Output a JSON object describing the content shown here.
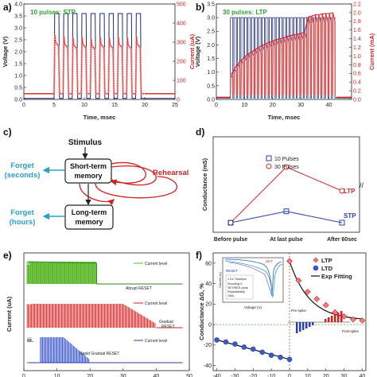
{
  "colors": {
    "voltage": "#1b2a7a",
    "current": "#d21f1f",
    "current_light": "#f3a0a0",
    "green": "#5cb82a",
    "red_line": "#cf2a2a",
    "blue_line": "#2a3fb0",
    "flow": "#2aa0c8",
    "rehearsal": "#cc2222",
    "title_green": "#2ea32e"
  },
  "panel_a": {
    "label": "a)",
    "title": "10 pulses: STP",
    "ylabel_left": "Voltage (V)",
    "ylabel_right": "Current (uA)",
    "xlabel": "Time, msec",
    "x_ticks": [
      "0",
      "5",
      "10",
      "15",
      "20",
      "25"
    ],
    "y_left_ticks": [
      "0.0",
      "0.5",
      "1.0",
      "1.5",
      "2.0",
      "2.5",
      "3.0",
      "3.5",
      "4.0"
    ],
    "y_right_ticks": [
      "0",
      "100",
      "200",
      "300",
      "400",
      "500"
    ]
  },
  "panel_b": {
    "label": "b)",
    "title": "30 pulses: LTP",
    "ylabel_left": "Voltage (V)",
    "ylabel_right": "Current (mA)",
    "xlabel": "Time, msec",
    "x_ticks": [
      "0",
      "10",
      "20",
      "30",
      "40"
    ],
    "y_left_ticks": [
      "0.0",
      "0.5",
      "1.0",
      "1.5",
      "2.0",
      "2.5",
      "3.0",
      "3.5"
    ],
    "y_right_ticks": [
      "0.0",
      "0.2",
      "0.4",
      "0.6",
      "0.8",
      "1.0",
      "1.2",
      "1.4",
      "1.6",
      "1.8",
      "2.0",
      "2.2"
    ]
  },
  "panel_c": {
    "label": "c)",
    "stimulus": "Stimulus",
    "short_term_1": "Short-term",
    "short_term_2": "memory",
    "long_term_1": "Long-term",
    "long_term_2": "memory",
    "forget_1a": "Forget",
    "forget_1b": "(seconds)",
    "forget_2a": "Forget",
    "forget_2b": "(hours)",
    "rehearsal": "Rehearsal"
  },
  "panel_d": {
    "label": "d)",
    "ylabel": "Conductance (mS)",
    "categories": [
      "Before pulse",
      "At last pulse",
      "After 60sec"
    ],
    "legend": [
      "10 Pulses",
      "30 Pulses"
    ],
    "tag_ltp": "LTP",
    "tag_stp": "STP"
  },
  "panel_e": {
    "label": "e)",
    "ylabel": "Current (uA)",
    "x_ticks": [
      "0",
      "10",
      "20",
      "30",
      "40",
      "50"
    ],
    "sub_i": "i.",
    "sub_ii": "ii.",
    "sub_iii": "iii.",
    "legend_i": "Current level",
    "legend_ii": "Current level",
    "legend_iii": "Current level",
    "note_i": "Abrupt RESET",
    "note_ii_1": "Gradual",
    "note_ii_2": "RESET",
    "note_iii": "Rapid Gradual RESET"
  },
  "panel_f": {
    "label": "f)",
    "ylabel": "Conductance ΔG, %",
    "x_ticks": [
      "-40",
      "-30",
      "-20",
      "-10",
      "0",
      "10",
      "20",
      "30",
      "40"
    ],
    "y_ticks": [
      "-40",
      "-20",
      "0",
      "20",
      "40",
      "60"
    ],
    "legend": [
      "LTP",
      "LTD",
      "Exp Fitting"
    ],
    "inset_set": "SET",
    "inset_reset": "RESET",
    "inset_xlabel": "Voltage (V)",
    "inset_ylabel": "Current (A)",
    "inset_box_title": "1 DC Sweeps:",
    "inset_box_l1": "Shooting V",
    "inset_box_l2": "SET/RES cycle",
    "inset_box_l3": "Repeatability",
    "inset_box_l4": "10dc",
    "pre_spike": "Pre-spike",
    "post_spike": "Post-spike"
  },
  "chart_data": [
    {
      "type": "line",
      "title": "10 pulses: STP",
      "xlabel": "Time, msec",
      "ylabel": "Voltage (V)",
      "y2label": "Current (uA)",
      "xlim": [
        0,
        25
      ],
      "ylim": [
        0,
        4.0
      ],
      "y2lim": [
        0,
        500
      ],
      "pulse_count": 10,
      "pulse_starts": [
        5.0,
        6.5,
        8.0,
        9.5,
        11.0,
        12.5,
        14.0,
        15.5,
        17.0,
        18.5
      ],
      "pulse_width": 0.9,
      "series": [
        {
          "name": "Voltage",
          "values": [
            3.6,
            3.6,
            3.6,
            3.6,
            3.6,
            3.6,
            3.6,
            3.6,
            3.6,
            3.6
          ]
        },
        {
          "name": "Current",
          "values": [
            340,
            330,
            325,
            330,
            320,
            330,
            325,
            330,
            325,
            330
          ]
        }
      ]
    },
    {
      "type": "line",
      "title": "30 pulses: LTP",
      "xlabel": "Time, msec",
      "ylabel": "Voltage (V)",
      "y2label": "Current (mA)",
      "xlim": [
        0,
        48
      ],
      "ylim": [
        0,
        3.5
      ],
      "y2lim": [
        0,
        2.2
      ],
      "pulse_count": 30,
      "pulse_start": 5,
      "pulse_period": 1.25,
      "series": [
        {
          "name": "Voltage",
          "values": [
            3.0,
            3.0,
            3.0,
            3.0,
            3.0,
            3.0,
            3.0,
            3.0,
            3.0,
            3.0,
            3.0,
            3.0,
            3.0,
            3.0,
            3.0,
            3.0,
            3.0,
            3.0,
            3.0,
            3.0,
            3.0,
            3.0,
            3.0,
            3.0,
            3.0,
            3.0,
            3.0,
            3.0,
            3.0,
            3.0
          ]
        },
        {
          "name": "Current",
          "values": [
            0.55,
            0.7,
            0.82,
            0.9,
            0.98,
            1.05,
            1.1,
            1.15,
            1.2,
            1.25,
            1.28,
            1.32,
            1.35,
            1.38,
            1.4,
            1.42,
            1.45,
            1.47,
            1.49,
            1.5,
            1.52,
            1.55,
            1.9,
            1.92,
            1.95,
            1.95,
            1.97,
            1.98,
            1.98,
            2.0
          ]
        }
      ]
    },
    {
      "type": "line",
      "ylabel": "Conductance (mS)",
      "categories": [
        "Before pulse",
        "At last pulse",
        "After 60sec"
      ],
      "series": [
        {
          "name": "10 Pulses",
          "values": [
            0.0,
            0.55,
            0.0
          ]
        },
        {
          "name": "30 Pulses",
          "values": [
            0.0,
            7.0,
            6.0
          ]
        }
      ]
    },
    {
      "type": "line",
      "ylabel": "Current (uA)",
      "xlim": [
        0,
        50
      ],
      "series": [
        {
          "name": "i. Current level",
          "reset_at": 22,
          "reset_type": "Abrupt RESET"
        },
        {
          "name": "ii. Current level",
          "reset_at": 40,
          "reset_type": "Gradual RESET"
        },
        {
          "name": "iii. Current level",
          "reset_at": 20,
          "reset_type": "Rapid Gradual RESET"
        }
      ]
    },
    {
      "type": "scatter",
      "xlabel": "",
      "ylabel": "Conductance ΔG, %",
      "xlim": [
        -42,
        42
      ],
      "ylim": [
        -45,
        70
      ],
      "series": [
        {
          "name": "LTP",
          "x": [
            0,
            5,
            10,
            15,
            20,
            25,
            30,
            35,
            40
          ],
          "y": [
            62,
            43,
            32,
            25,
            19,
            12,
            8,
            5,
            4
          ]
        },
        {
          "name": "LTD",
          "x": [
            -40,
            -35,
            -30,
            -25,
            -20,
            -15,
            -10,
            -5,
            0
          ],
          "y": [
            -15,
            -17,
            -19,
            -22,
            -24,
            -27,
            -30,
            -32,
            -34
          ]
        }
      ]
    }
  ]
}
